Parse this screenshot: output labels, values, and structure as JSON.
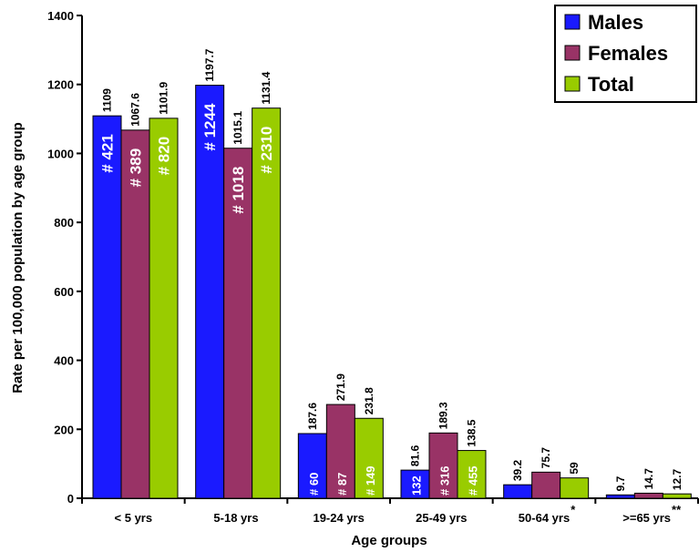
{
  "chart_data": {
    "type": "bar",
    "categories": [
      "< 5 yrs",
      "5-18 yrs",
      "19-24 yrs",
      "25-49 yrs",
      "50-64 yrs",
      ">=65 yrs"
    ],
    "category_markers": [
      "",
      "",
      "",
      "",
      "*",
      "**"
    ],
    "series": [
      {
        "name": "Males",
        "color": "#1a1aff",
        "values": [
          1109,
          1197.7,
          187.6,
          81.6,
          39.2,
          9.7
        ],
        "value_labels": [
          "1109",
          "1197.7",
          "187.6",
          "81.6",
          "39.2",
          "9.7"
        ],
        "counts": [
          "# 421",
          "# 1244",
          "# 60",
          "132",
          "",
          ""
        ]
      },
      {
        "name": "Females",
        "color": "#993366",
        "values": [
          1067.6,
          1015.1,
          271.9,
          189.3,
          75.7,
          14.7
        ],
        "value_labels": [
          "1067.6",
          "1015.1",
          "271.9",
          "189.3",
          "75.7",
          "14.7"
        ],
        "counts": [
          "# 389",
          "# 1018",
          "# 87",
          "# 316",
          "",
          ""
        ]
      },
      {
        "name": "Total",
        "color": "#99cc00",
        "values": [
          1101.9,
          1131.4,
          231.8,
          138.5,
          59,
          12.7
        ],
        "value_labels": [
          "1101.9",
          "1131.4",
          "231.8",
          "138.5",
          "59",
          "12.7"
        ],
        "counts": [
          "# 820",
          "# 2310",
          "# 149",
          "# 455",
          "",
          ""
        ]
      }
    ],
    "xlabel": "Age groups",
    "ylabel": "Rate per 100,000 population by age group",
    "ylim": [
      0,
      1400
    ],
    "yticks": [
      "0",
      "200",
      "400",
      "600",
      "800",
      "1000",
      "1200",
      "1400"
    ],
    "grid": false,
    "legend": "top-right"
  }
}
